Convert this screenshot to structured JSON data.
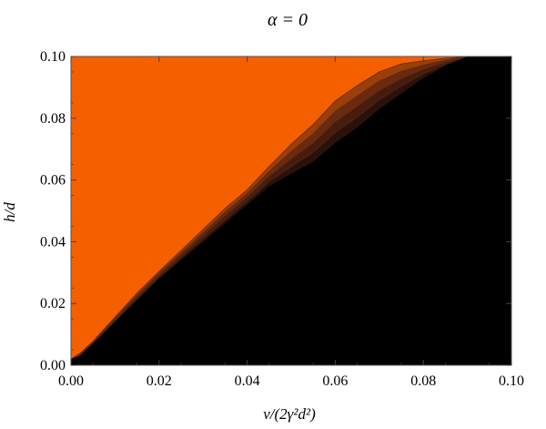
{
  "chart_data": {
    "type": "heatmap",
    "title": "α = 0",
    "xlabel": "ν/(2γ²d²)",
    "ylabel": "h/d",
    "xlim": [
      0.0,
      0.1
    ],
    "ylim": [
      0.0,
      0.1
    ],
    "x_ticks": [
      "0.00",
      "0.02",
      "0.04",
      "0.06",
      "0.08",
      "0.10"
    ],
    "y_ticks": [
      "0.00",
      "0.02",
      "0.04",
      "0.06",
      "0.08",
      "0.10"
    ],
    "colors": {
      "high": "#f45f00",
      "low": "#000000",
      "levels": [
        "#f45f00",
        "#9a3e0a",
        "#6a2a10",
        "#461c0e",
        "#2a120a",
        "#000000"
      ]
    },
    "boundary": {
      "x": [
        0.0,
        0.002,
        0.005,
        0.01,
        0.015,
        0.02,
        0.025,
        0.03,
        0.035,
        0.04,
        0.045,
        0.05,
        0.055,
        0.06,
        0.065,
        0.07,
        0.075,
        0.08,
        0.085,
        0.09,
        0.095,
        0.1
      ],
      "y_upper": [
        0.002,
        0.004,
        0.008,
        0.016,
        0.024,
        0.031,
        0.038,
        0.045,
        0.052,
        0.058,
        0.066,
        0.074,
        0.081,
        0.089,
        0.094,
        0.098,
        0.1,
        0.1,
        0.1,
        0.1,
        0.1,
        0.1
      ],
      "y_lower": [
        0.002,
        0.003,
        0.007,
        0.014,
        0.021,
        0.028,
        0.034,
        0.04,
        0.046,
        0.052,
        0.058,
        0.062,
        0.066,
        0.072,
        0.077,
        0.083,
        0.088,
        0.093,
        0.097,
        0.1,
        0.1,
        0.1
      ]
    },
    "grid": false
  }
}
